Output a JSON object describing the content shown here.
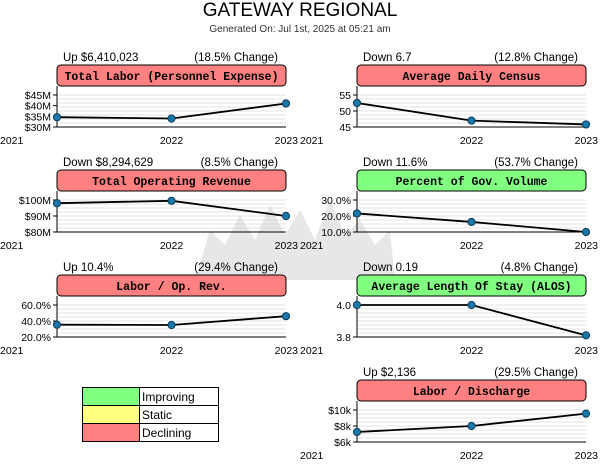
{
  "header": {
    "title": "GATEWAY REGIONAL",
    "generated": "Generated On: Jul 1st, 2025 at 05:21 am"
  },
  "colors": {
    "improving": "#80ff80",
    "static": "#ffff80",
    "declining": "#ff8080",
    "line": "#000000",
    "marker": "#1a78a8",
    "grid": "#c8c8c8"
  },
  "legend": [
    {
      "label": "Improving",
      "color": "#80ff80"
    },
    {
      "label": "Static",
      "color": "#ffff80"
    },
    {
      "label": "Declining",
      "color": "#ff8080"
    }
  ],
  "chart_data": [
    {
      "type": "line",
      "title": "Total Labor (Personnel Expense)",
      "status": "declining",
      "summary": "Up $6,410,023",
      "change": "(18.5% Change)",
      "x": [
        "2021",
        "2022",
        "2023"
      ],
      "values": [
        34.6,
        34.0,
        41.0
      ],
      "ylim": [
        30,
        45
      ],
      "yticks": [
        {
          "v": 30,
          "label": "$30M"
        },
        {
          "v": 35,
          "label": "$35M"
        },
        {
          "v": 40,
          "label": "$40M"
        },
        {
          "v": 45,
          "label": "$45M"
        }
      ]
    },
    {
      "type": "line",
      "title": "Average Daily Census",
      "status": "declining",
      "summary": "Down 6.7",
      "change": "(12.8% Change)",
      "x": [
        "2021",
        "2022",
        "2023"
      ],
      "values": [
        52.5,
        47.0,
        45.8
      ],
      "ylim": [
        45,
        55
      ],
      "yticks": [
        {
          "v": 45,
          "label": "45"
        },
        {
          "v": 50,
          "label": "50"
        },
        {
          "v": 55,
          "label": "55"
        }
      ]
    },
    {
      "type": "line",
      "title": "Total Operating Revenue",
      "status": "declining",
      "summary": "Down $8,294,629",
      "change": "(8.5% Change)",
      "x": [
        "2021",
        "2022",
        "2023"
      ],
      "values": [
        98.0,
        99.5,
        90.0
      ],
      "ylim": [
        80,
        100
      ],
      "yticks": [
        {
          "v": 80,
          "label": "$80M"
        },
        {
          "v": 90,
          "label": "$90M"
        },
        {
          "v": 100,
          "label": "$100M"
        }
      ]
    },
    {
      "type": "line",
      "title": "Percent of Gov. Volume",
      "status": "improving",
      "summary": "Down 11.6%",
      "change": "(53.7% Change)",
      "x": [
        "2021",
        "2022",
        "2023"
      ],
      "values": [
        21.6,
        16.3,
        10.0
      ],
      "ylim": [
        10,
        30
      ],
      "yticks": [
        {
          "v": 10,
          "label": "10.0%"
        },
        {
          "v": 20,
          "label": "20.0%"
        },
        {
          "v": 30,
          "label": "30.0%"
        }
      ]
    },
    {
      "type": "line",
      "title": "Labor / Op. Rev.",
      "status": "declining",
      "summary": "Up 10.4%",
      "change": "(29.4% Change)",
      "x": [
        "2021",
        "2022",
        "2023"
      ],
      "values": [
        35.4,
        35.0,
        46.0
      ],
      "ylim": [
        20,
        60
      ],
      "yticks": [
        {
          "v": 20,
          "label": "20.0%"
        },
        {
          "v": 40,
          "label": "40.0%"
        },
        {
          "v": 60,
          "label": "60.0%"
        }
      ]
    },
    {
      "type": "line",
      "title": "Average Length Of Stay (ALOS)",
      "status": "improving",
      "summary": "Down 0.19",
      "change": "(4.8% Change)",
      "x": [
        "2021",
        "2022",
        "2023"
      ],
      "values": [
        4.0,
        4.0,
        3.81
      ],
      "ylim": [
        3.8,
        4.0
      ],
      "yticks": [
        {
          "v": 3.8,
          "label": "3.8"
        },
        {
          "v": 4.0,
          "label": "4.0"
        }
      ]
    },
    {
      "type": "line",
      "title": "Labor / Discharge",
      "status": "declining",
      "summary": "Up $2,136",
      "change": "(29.5% Change)",
      "x": [
        "2021",
        "2022",
        "2023"
      ],
      "values": [
        7.25,
        8.0,
        9.55
      ],
      "ylim": [
        6,
        10
      ],
      "yticks": [
        {
          "v": 6,
          "label": "$6k"
        },
        {
          "v": 8,
          "label": "$8k"
        },
        {
          "v": 10,
          "label": "$10k"
        }
      ]
    }
  ]
}
